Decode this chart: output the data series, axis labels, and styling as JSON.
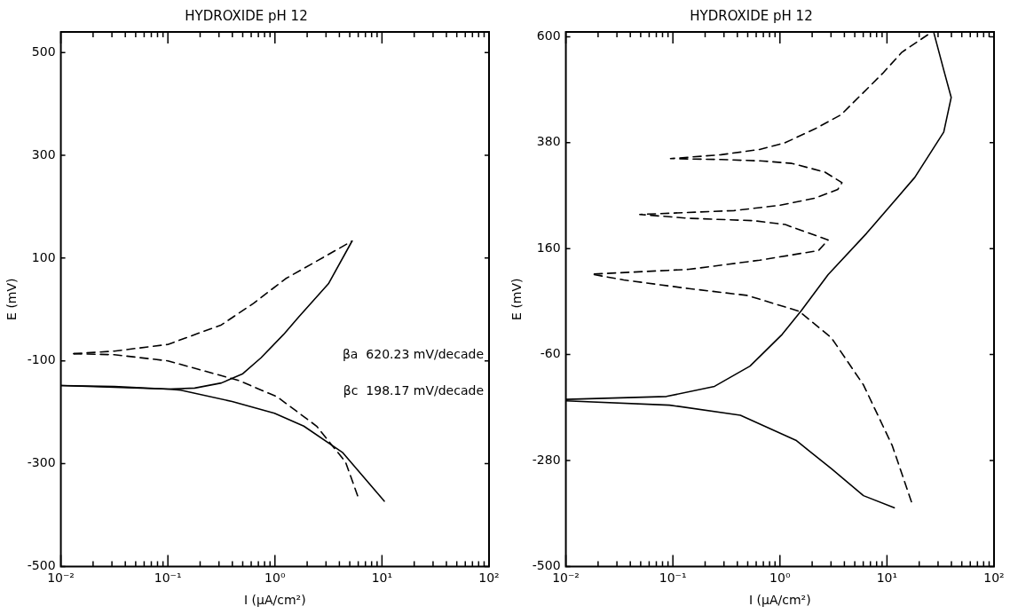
{
  "chart_data": [
    {
      "type": "line",
      "title": "HYDROXIDE pH 12",
      "xlabel": "I (μA/cm²)",
      "ylabel": "E (mV)",
      "log": "x",
      "grid": false,
      "legend": false,
      "marker": "none",
      "xlim": [
        0.01,
        100
      ],
      "ylim": [
        -500,
        540
      ],
      "xticks": [
        {
          "value": 0.01,
          "label": "10⁻²"
        },
        {
          "value": 0.02,
          "label": null
        },
        {
          "value": 0.03,
          "label": null
        },
        {
          "value": 0.04,
          "label": null
        },
        {
          "value": 0.05,
          "label": null
        },
        {
          "value": 0.06,
          "label": null
        },
        {
          "value": 0.07,
          "label": null
        },
        {
          "value": 0.08,
          "label": null
        },
        {
          "value": 0.09,
          "label": null
        },
        {
          "value": 0.1,
          "label": "10⁻¹"
        },
        {
          "value": 0.2,
          "label": null
        },
        {
          "value": 0.3,
          "label": null
        },
        {
          "value": 0.4,
          "label": null
        },
        {
          "value": 0.5,
          "label": null
        },
        {
          "value": 0.6,
          "label": null
        },
        {
          "value": 0.7,
          "label": null
        },
        {
          "value": 0.8,
          "label": null
        },
        {
          "value": 0.9,
          "label": null
        },
        {
          "value": 1,
          "label": "10⁰"
        },
        {
          "value": 2,
          "label": null
        },
        {
          "value": 3,
          "label": null
        },
        {
          "value": 4,
          "label": null
        },
        {
          "value": 5,
          "label": null
        },
        {
          "value": 6,
          "label": null
        },
        {
          "value": 7,
          "label": null
        },
        {
          "value": 8,
          "label": null
        },
        {
          "value": 9,
          "label": null
        },
        {
          "value": 10,
          "label": "10¹"
        },
        {
          "value": 20,
          "label": null
        },
        {
          "value": 30,
          "label": null
        },
        {
          "value": 40,
          "label": null
        },
        {
          "value": 50,
          "label": null
        },
        {
          "value": 60,
          "label": null
        },
        {
          "value": 70,
          "label": null
        },
        {
          "value": 80,
          "label": null
        },
        {
          "value": 90,
          "label": null
        },
        {
          "value": 100,
          "label": "10²"
        }
      ],
      "yticks": [
        -500,
        -300,
        -100,
        100,
        300,
        500
      ],
      "annotations": [
        "βa  620.23 mV/decade",
        "βc  198.17 mV/decade"
      ],
      "series": [
        {
          "color": "#000000",
          "line_style": "solid",
          "x": [
            0.01,
            0.0316,
            0.1,
            0.178,
            0.316,
            0.501,
            0.741,
            1.2,
            1.66,
            3.16,
            5.25
          ],
          "values": [
            -148,
            -150,
            -155,
            -153,
            -143,
            -125,
            -94,
            -49,
            -15,
            50,
            133
          ]
        },
        {
          "color": "#000000",
          "line_style": "solid",
          "x": [
            0.01,
            0.1,
            0.132,
            0.398,
            0.99,
            1.86,
            4.27,
            10.5
          ],
          "values": [
            -148,
            -155,
            -157,
            -179,
            -202,
            -227,
            -278,
            -373
          ]
        },
        {
          "color": "#000000",
          "line_style": "dashed",
          "x": [
            0.0132,
            0.0316,
            0.1,
            0.316,
            0.631,
            1.26,
            5.25
          ],
          "values": [
            -86,
            -81,
            -68,
            -30,
            12,
            60,
            133
          ]
        },
        {
          "color": "#000000",
          "line_style": "dashed",
          "x": [
            0.0132,
            0.0316,
            0.1,
            0.457,
            1.05,
            2.45,
            4.57,
            6.03
          ],
          "values": [
            -86,
            -88,
            -100,
            -138,
            -170,
            -227,
            -297,
            -367
          ]
        }
      ]
    },
    {
      "type": "line",
      "title": "HYDROXIDE pH 12",
      "xlabel": "I (μA/cm²)",
      "ylabel": "E (mV)",
      "log": "x",
      "grid": false,
      "legend": false,
      "marker": "none",
      "xlim": [
        0.01,
        100
      ],
      "ylim": [
        -500,
        610
      ],
      "xticks": [
        {
          "value": 0.01,
          "label": "10⁻²"
        },
        {
          "value": 0.02,
          "label": null
        },
        {
          "value": 0.03,
          "label": null
        },
        {
          "value": 0.04,
          "label": null
        },
        {
          "value": 0.05,
          "label": null
        },
        {
          "value": 0.06,
          "label": null
        },
        {
          "value": 0.07,
          "label": null
        },
        {
          "value": 0.08,
          "label": null
        },
        {
          "value": 0.09,
          "label": null
        },
        {
          "value": 0.1,
          "label": "10⁻¹"
        },
        {
          "value": 0.2,
          "label": null
        },
        {
          "value": 0.3,
          "label": null
        },
        {
          "value": 0.4,
          "label": null
        },
        {
          "value": 0.5,
          "label": null
        },
        {
          "value": 0.6,
          "label": null
        },
        {
          "value": 0.7,
          "label": null
        },
        {
          "value": 0.8,
          "label": null
        },
        {
          "value": 0.9,
          "label": null
        },
        {
          "value": 1,
          "label": "10⁰"
        },
        {
          "value": 2,
          "label": null
        },
        {
          "value": 3,
          "label": null
        },
        {
          "value": 4,
          "label": null
        },
        {
          "value": 5,
          "label": null
        },
        {
          "value": 6,
          "label": null
        },
        {
          "value": 7,
          "label": null
        },
        {
          "value": 8,
          "label": null
        },
        {
          "value": 9,
          "label": null
        },
        {
          "value": 10,
          "label": "10¹"
        },
        {
          "value": 20,
          "label": null
        },
        {
          "value": 30,
          "label": null
        },
        {
          "value": 40,
          "label": null
        },
        {
          "value": 50,
          "label": null
        },
        {
          "value": 60,
          "label": null
        },
        {
          "value": 70,
          "label": null
        },
        {
          "value": 80,
          "label": null
        },
        {
          "value": 90,
          "label": null
        },
        {
          "value": 100,
          "label": "10²"
        }
      ],
      "yticks": [
        -500,
        -280,
        -60,
        160,
        380,
        600
      ],
      "series": [
        {
          "color": "#000000",
          "line_style": "solid",
          "x": [
            0.01,
            0.087,
            0.245,
            0.525,
            1.05,
            1.58,
            2.82,
            6.46,
            18.2,
            33.9,
            39.8,
            33.9,
            27.5
          ],
          "values": [
            -153,
            -147,
            -126,
            -84,
            -18,
            31,
            106,
            192,
            308,
            402,
            474,
            531,
            607
          ]
        },
        {
          "color": "#000000",
          "line_style": "solid",
          "x": [
            0.01,
            0.093,
            0.427,
            1.41,
            3.02,
            6.03,
            11.7
          ],
          "values": [
            -156,
            -165,
            -186,
            -238,
            -297,
            -353,
            -378
          ]
        },
        {
          "color": "#000000",
          "line_style": "dashed",
          "x": [
            24,
            13.8,
            9.12,
            3.72,
            2.14,
            1.12,
            0.646,
            0.282,
            0.095,
            0.282,
            0.692,
            1.29,
            2.63,
            3.8,
            3.47,
            2.14,
            1,
            0.372,
            0.049,
            0.141,
            0.575,
            1.12,
            2.82,
            2.29,
            0.646,
            0.141,
            0.0174,
            0.0347,
            0.141,
            0.49,
            1.51,
            3.02,
            4.27,
            6.03,
            7.94,
            11.2,
            17
          ],
          "values": [
            604,
            568,
            524,
            438,
            409,
            380,
            366,
            355,
            347,
            345,
            342,
            337,
            319,
            297,
            283,
            265,
            250,
            239,
            231,
            223,
            218,
            210,
            178,
            156,
            136,
            117,
            107,
            95,
            77,
            63,
            30,
            -25,
            -74,
            -123,
            -179,
            -249,
            -367
          ]
        }
      ]
    }
  ]
}
